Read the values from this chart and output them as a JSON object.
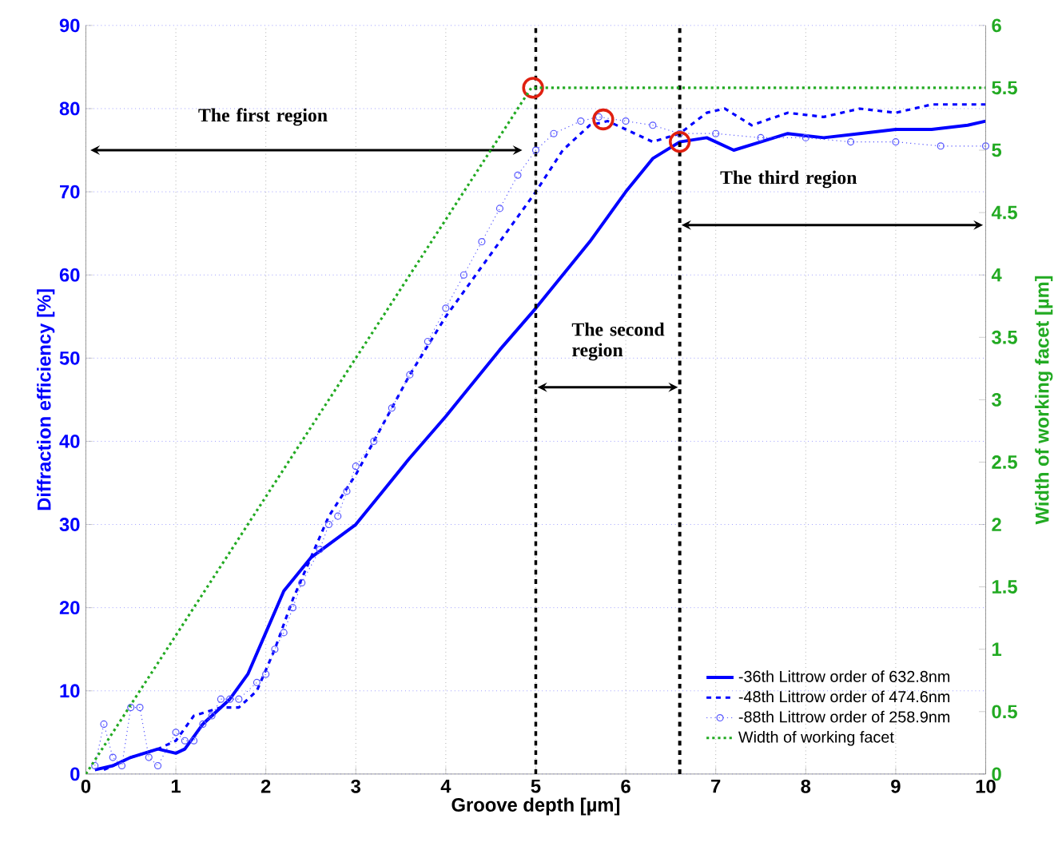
{
  "chart_data": {
    "type": "line",
    "xlabel": "Groove depth [µm]",
    "ylabel": "Diffraction efficiency [%]",
    "y2label": "Width of working facet [µm]",
    "xlim": [
      0,
      10
    ],
    "xticks": [
      0,
      1,
      2,
      3,
      4,
      5,
      6,
      7,
      8,
      9,
      10
    ],
    "ylim": [
      0,
      90
    ],
    "yticks": [
      0,
      10,
      20,
      30,
      40,
      50,
      60,
      70,
      80,
      90
    ],
    "y2lim": [
      0,
      6
    ],
    "y2ticks": [
      0,
      0.5,
      1,
      1.5,
      2,
      2.5,
      3,
      3.5,
      4,
      4.5,
      5,
      5.5,
      6
    ],
    "grid": true,
    "legend": "bottom right",
    "series": [
      {
        "name": "-36th Littrow order of 632.8nm",
        "color": "#0000ff",
        "line_style": "solid",
        "marker": "none",
        "x": [
          0.1,
          0.3,
          0.5,
          0.8,
          1.0,
          1.1,
          1.3,
          1.6,
          1.8,
          2.0,
          2.2,
          2.5,
          3.0,
          3.3,
          3.6,
          4.0,
          4.3,
          4.6,
          5.0,
          5.3,
          5.6,
          6.0,
          6.3,
          6.6,
          6.9,
          7.2,
          7.5,
          7.8,
          8.2,
          8.6,
          9.0,
          9.4,
          9.8,
          10
        ],
        "values": [
          0.5,
          1,
          2,
          3,
          2.5,
          3,
          6,
          9,
          12,
          17,
          22,
          26,
          30,
          34,
          38,
          43,
          47,
          51,
          56,
          60,
          64,
          70,
          74,
          76,
          76.5,
          75,
          76,
          77,
          76.5,
          77,
          77.5,
          77.5,
          78,
          78.5
        ]
      },
      {
        "name": "-48th Littrow order of 474.6nm",
        "color": "#0000ff",
        "line_style": "dashed",
        "marker": "none",
        "x": [
          0.2,
          0.5,
          0.8,
          1.0,
          1.2,
          1.5,
          1.7,
          1.9,
          2.1,
          2.3,
          2.5,
          2.7,
          3.0,
          3.3,
          3.6,
          4.0,
          4.4,
          4.8,
          5.0,
          5.3,
          5.6,
          5.8,
          6.1,
          6.3,
          6.6,
          6.9,
          7.1,
          7.4,
          7.8,
          8.2,
          8.6,
          9.0,
          9.4,
          10
        ],
        "values": [
          0.5,
          2,
          3,
          4,
          7,
          8,
          8,
          10,
          15,
          21,
          26,
          31,
          36,
          42,
          48,
          55,
          61,
          67,
          70,
          75,
          78,
          78.5,
          77,
          76,
          77,
          79.5,
          80,
          78,
          79.5,
          79,
          80,
          79.5,
          80.5,
          80.5
        ]
      },
      {
        "name": "-88th Littrow order of 258.9nm",
        "color": "#5555ff",
        "line_style": "dotted",
        "marker": "circle",
        "x": [
          0.1,
          0.2,
          0.3,
          0.4,
          0.5,
          0.6,
          0.7,
          0.8,
          1.0,
          1.1,
          1.2,
          1.3,
          1.4,
          1.5,
          1.6,
          1.7,
          1.9,
          2.0,
          2.1,
          2.2,
          2.3,
          2.4,
          2.6,
          2.7,
          2.8,
          2.9,
          3.0,
          3.2,
          3.4,
          3.6,
          3.8,
          4.0,
          4.2,
          4.4,
          4.6,
          4.8,
          5.0,
          5.2,
          5.5,
          5.7,
          6.0,
          6.3,
          6.6,
          7.0,
          7.5,
          8.0,
          8.5,
          9.0,
          9.5,
          10
        ],
        "values": [
          1,
          6,
          2,
          1,
          8,
          8,
          2,
          1,
          5,
          4,
          4,
          6,
          7,
          9,
          9,
          9,
          11,
          12,
          15,
          17,
          20,
          23,
          27,
          30,
          31,
          34,
          37,
          40,
          44,
          48,
          52,
          56,
          60,
          64,
          68,
          72,
          75,
          77,
          78.5,
          79,
          78.5,
          78,
          77,
          77,
          76.5,
          76.5,
          76,
          76,
          75.5,
          75.5
        ]
      },
      {
        "name": "Width of working facet",
        "color": "#22aa22",
        "line_style": "dotted",
        "marker": "none",
        "axis": "y2",
        "x": [
          0,
          4.95,
          10
        ],
        "values": [
          0,
          5.5,
          5.5
        ]
      },
      {
        "type": "scatter",
        "color": "#e02010",
        "marker": "circle",
        "x": [
          4.97,
          5.75,
          6.6
        ],
        "values": [
          82.5,
          78.7,
          76
        ]
      }
    ],
    "ref_lines": [
      {
        "axis": "x",
        "value": 5,
        "color": "#000000",
        "line_style": "dashed"
      },
      {
        "axis": "x",
        "value": 6.6,
        "color": "#000000",
        "line_style": "dashed"
      }
    ],
    "annotations": [
      "The first region",
      "The second region",
      "The third region"
    ]
  }
}
